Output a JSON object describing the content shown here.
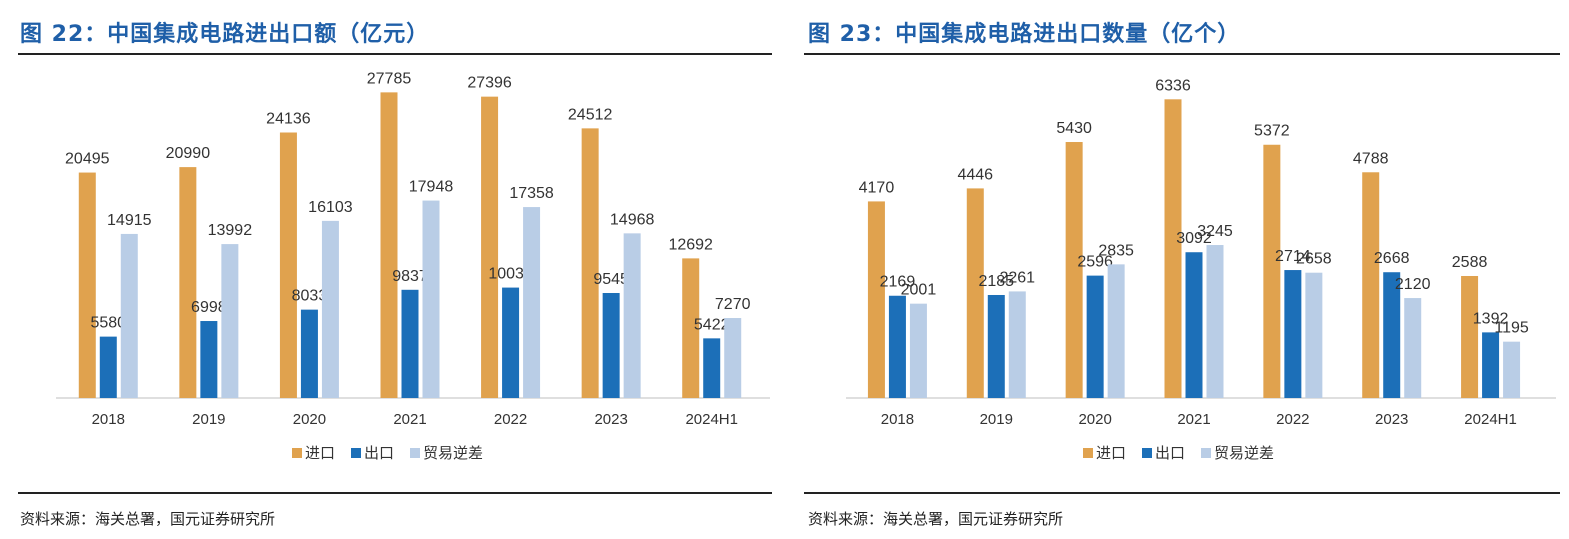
{
  "left": {
    "title": "图 22：中国集成电路进出口额（亿元）",
    "source": "资料来源：海关总署，国元证券研究所"
  },
  "right": {
    "title": "图 23：中国集成电路进出口数量（亿个）",
    "source": "资料来源：海关总署，国元证券研究所"
  },
  "colors": {
    "import": "#e0a24e",
    "export": "#1c6fb8",
    "balance": "#b9cde6"
  },
  "chart_data": [
    {
      "type": "bar",
      "title": "中国集成电路进出口额（亿元）",
      "categories": [
        "2018",
        "2019",
        "2020",
        "2021",
        "2022",
        "2023",
        "2024H1"
      ],
      "ylim": [
        0,
        30000
      ],
      "legend_position": "bottom",
      "series": [
        {
          "name": "进口",
          "values": [
            20495,
            20990,
            24136,
            27785,
            27396,
            24512,
            12692
          ]
        },
        {
          "name": "出口",
          "values": [
            5580,
            6998,
            8033,
            9837,
            10038,
            9545,
            5422
          ]
        },
        {
          "name": "贸易逆差",
          "values": [
            14915,
            13992,
            16103,
            17948,
            17358,
            14968,
            7270
          ]
        }
      ]
    },
    {
      "type": "bar",
      "title": "中国集成电路进出口数量（亿个）",
      "categories": [
        "2018",
        "2019",
        "2020",
        "2021",
        "2022",
        "2023",
        "2024H1"
      ],
      "ylim": [
        0,
        7000
      ],
      "legend_position": "bottom",
      "series": [
        {
          "name": "进口",
          "values": [
            4170,
            4446,
            5430,
            6336,
            5372,
            4788,
            2588
          ]
        },
        {
          "name": "出口",
          "values": [
            2169,
            2185,
            2596,
            3092,
            2714,
            2668,
            1392
          ]
        },
        {
          "name": "贸易逆差",
          "values": [
            2001,
            2261,
            2835,
            3245,
            2658,
            2120,
            1195
          ]
        }
      ]
    }
  ]
}
